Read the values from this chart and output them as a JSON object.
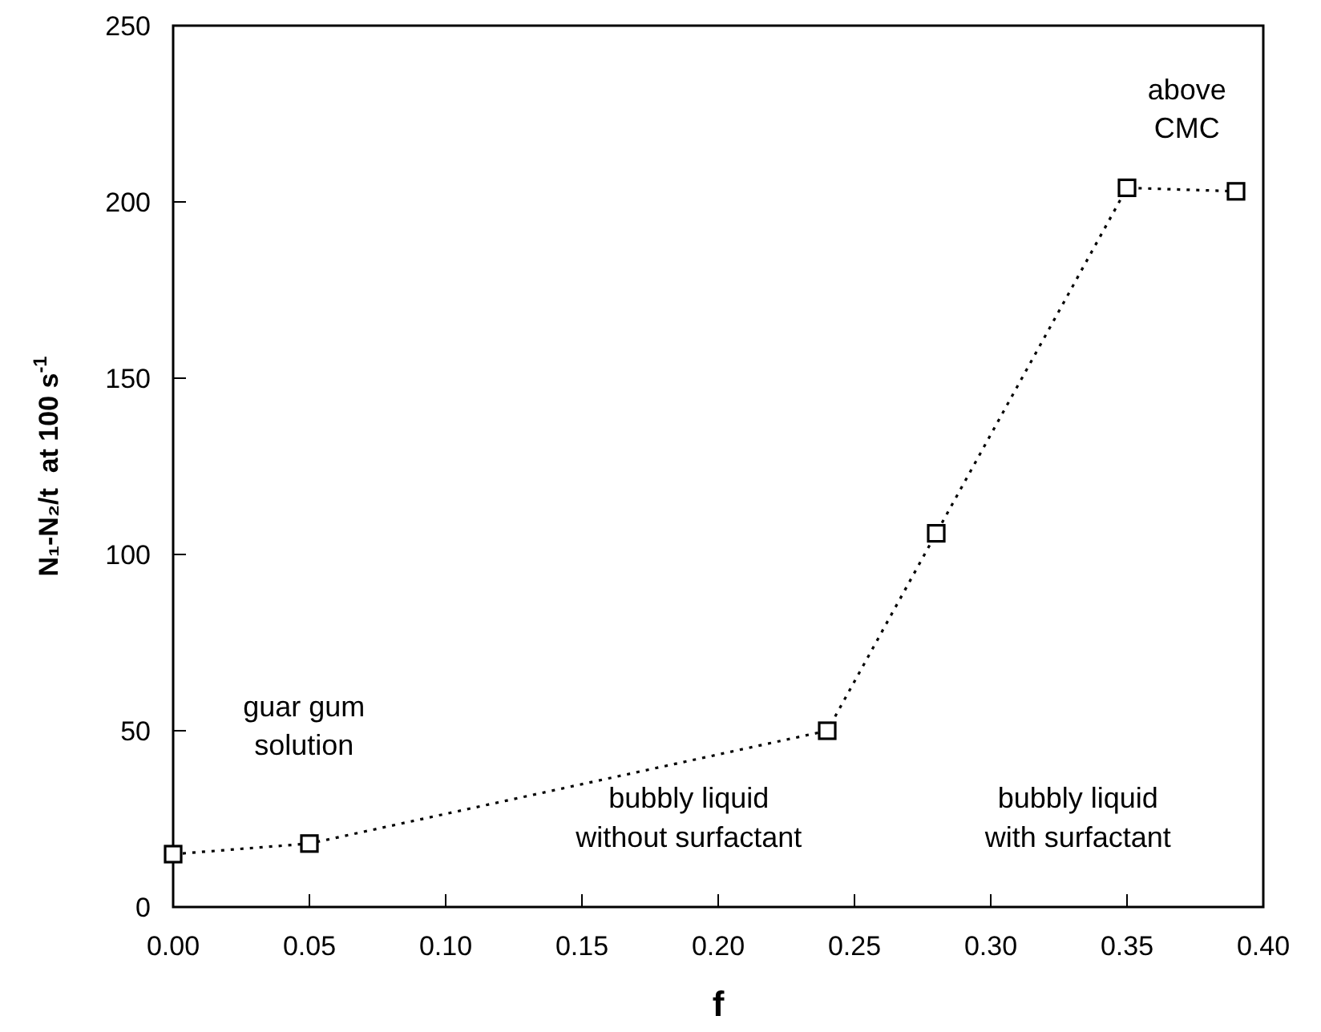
{
  "chart_data": {
    "type": "line",
    "xlabel": "f",
    "ylabel": "N₁-N₂/t  at 100 s$^{-1}$",
    "x": [
      0,
      0.05,
      0.24,
      0.28,
      0.35,
      0.39
    ],
    "series": [
      {
        "color": "#000000",
        "values": [
          15,
          18,
          50,
          106,
          204,
          203
        ]
      }
    ],
    "marker": "square",
    "line_style": "dotted",
    "grid": false,
    "xlim": [
      0,
      0.4
    ],
    "xticks": [
      {
        "value": 0,
        "label": "0.00"
      },
      {
        "value": 0.05,
        "label": "0.05"
      },
      {
        "value": 0.1,
        "label": "0.10"
      },
      {
        "value": 0.15,
        "label": "0.15"
      },
      {
        "value": 0.2,
        "label": "0.20"
      },
      {
        "value": 0.25,
        "label": "0.25"
      },
      {
        "value": 0.3,
        "label": "0.30"
      },
      {
        "value": 0.35,
        "label": "0.35"
      },
      {
        "value": 0.4,
        "label": "0.40"
      }
    ],
    "ylim": [
      0,
      250
    ],
    "yticks": [
      0,
      50,
      100,
      150,
      200,
      250
    ],
    "annotations": [
      "guar gum\nsolution",
      "bubbly liquid\nwithout surfactant",
      "bubbly liquid\nwith surfactant",
      "above\nCMC"
    ]
  }
}
